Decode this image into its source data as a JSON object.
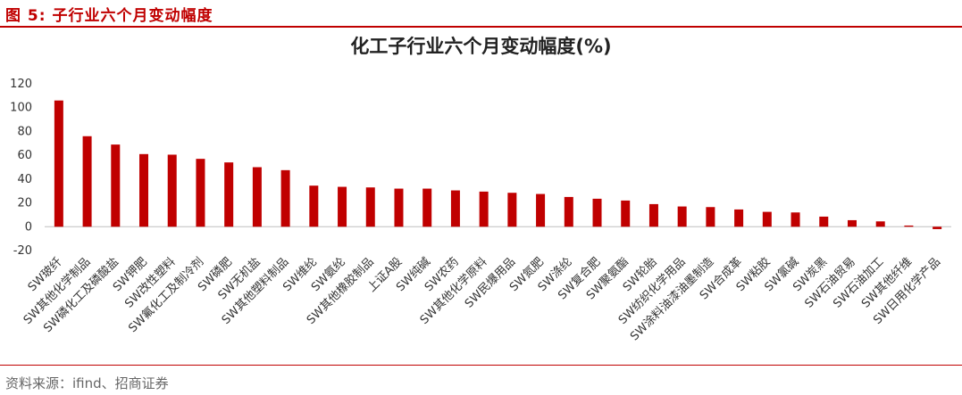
{
  "figure_label": "图 5: 子行业六个月变动幅度",
  "source_note": "资料来源：ifind、招商证券",
  "colors": {
    "bar": "#c00000",
    "axis_text": "#333333",
    "header_accent": "#c00000"
  },
  "chart_data": {
    "type": "bar",
    "title": "化工子行业六个月变动幅度(%)",
    "xlabel": "",
    "ylabel": "",
    "ylim": [
      -20,
      120
    ],
    "yticks": [
      -20,
      0,
      20,
      40,
      60,
      80,
      100,
      120
    ],
    "grid": false,
    "categories": [
      "SW玻纤",
      "SW其他化学制品",
      "SW磷化工及磷酸盐",
      "SW钾肥",
      "SW改性塑料",
      "SW氟化工及制冷剂",
      "SW磷肥",
      "SW无机盐",
      "SW其他塑料制品",
      "SW维纶",
      "SW氨纶",
      "SW其他橡胶制品",
      "上证A股",
      "SW纯碱",
      "SW农药",
      "SW其他化学原料",
      "SW民爆用品",
      "SW氮肥",
      "SW涤纶",
      "SW复合肥",
      "SW聚氨酯",
      "SW轮胎",
      "SW纺织化学用品",
      "SW涂料油漆油墨制造",
      "SW合成革",
      "SW粘胶",
      "SW氯碱",
      "SW炭黑",
      "SW石油贸易",
      "SW石油加工",
      "SW其他纤维",
      "SW日用化学产品"
    ],
    "values": [
      106,
      76,
      69,
      61,
      60.5,
      57,
      54,
      50,
      47.5,
      34.5,
      33.5,
      33,
      32,
      32,
      30.5,
      29.5,
      28.5,
      27.5,
      25,
      23.5,
      22,
      19,
      17,
      16.5,
      14.5,
      12.5,
      12,
      8.5,
      5.5,
      4.5,
      1,
      -2
    ]
  }
}
